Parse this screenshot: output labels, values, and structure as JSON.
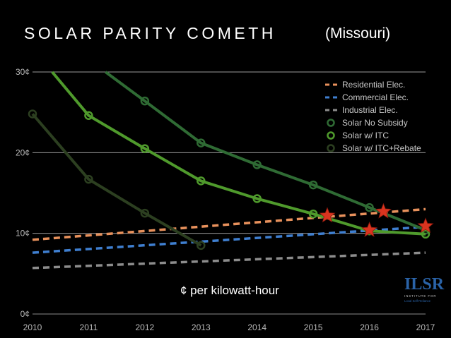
{
  "title": "SOLAR PARITY COMETH",
  "subtitle": "(Missouri)",
  "unit_note": "¢ per kilowatt-hour",
  "logo": {
    "text": "ILSR",
    "line1": "INSTITUTE FOR",
    "line2": "Local Self-Reliance"
  },
  "colors": {
    "background": "#000000",
    "residential": "#e8915c",
    "commercial": "#3f7fd0",
    "industrial": "#8c8c8c",
    "solar_no_subsidy": "#2f6b34",
    "solar_itc": "#4f9a2c",
    "solar_itc_rebate": "#2c3f20",
    "star": "#d9341f"
  },
  "chart_data": {
    "type": "line",
    "x_ticks": [
      "2010",
      "2011",
      "2012",
      "2013",
      "2014",
      "2015",
      "2016",
      "2017"
    ],
    "y_ticks": [
      "0¢",
      "10¢",
      "20¢",
      "30¢"
    ],
    "xlim": [
      2010,
      2017
    ],
    "ylim": [
      0,
      30
    ],
    "grid": true,
    "legend_position": "top-right",
    "series": [
      {
        "name": "Residential Elec.",
        "style": "dashed",
        "color": "#e8915c",
        "x": [
          2010,
          2017
        ],
        "y": [
          9.2,
          13.0
        ]
      },
      {
        "name": "Commercial Elec.",
        "style": "dashed",
        "color": "#3f7fd0",
        "x": [
          2010,
          2017
        ],
        "y": [
          7.6,
          10.8
        ]
      },
      {
        "name": "Industrial Elec.",
        "style": "dashed",
        "color": "#8c8c8c",
        "x": [
          2010,
          2017
        ],
        "y": [
          5.7,
          7.6
        ]
      },
      {
        "name": "Solar No Subsidy",
        "style": "solid-markers",
        "color": "#2f6b34",
        "x": [
          2011.3,
          2012,
          2013,
          2014,
          2015,
          2016,
          2017
        ],
        "y": [
          30.0,
          26.4,
          21.2,
          18.5,
          16.0,
          13.2,
          10.4
        ]
      },
      {
        "name": "Solar w/ ITC",
        "style": "solid-markers",
        "color": "#4f9a2c",
        "x": [
          2010.35,
          2011,
          2012,
          2013,
          2014,
          2015,
          2016,
          2017
        ],
        "y": [
          30.0,
          24.6,
          20.5,
          16.5,
          14.3,
          12.4,
          10.3,
          9.9
        ]
      },
      {
        "name": "Solar w/ ITC+Rebate",
        "style": "solid-markers",
        "color": "#2c3f20",
        "x": [
          2010,
          2011,
          2012,
          2013
        ],
        "y": [
          24.8,
          16.7,
          12.5,
          8.5
        ]
      }
    ],
    "parity_points": [
      {
        "x": 2015.25,
        "y": 12.2
      },
      {
        "x": 2016.0,
        "y": 10.4
      },
      {
        "x": 2016.25,
        "y": 12.7
      },
      {
        "x": 2017.0,
        "y": 10.9
      }
    ]
  }
}
